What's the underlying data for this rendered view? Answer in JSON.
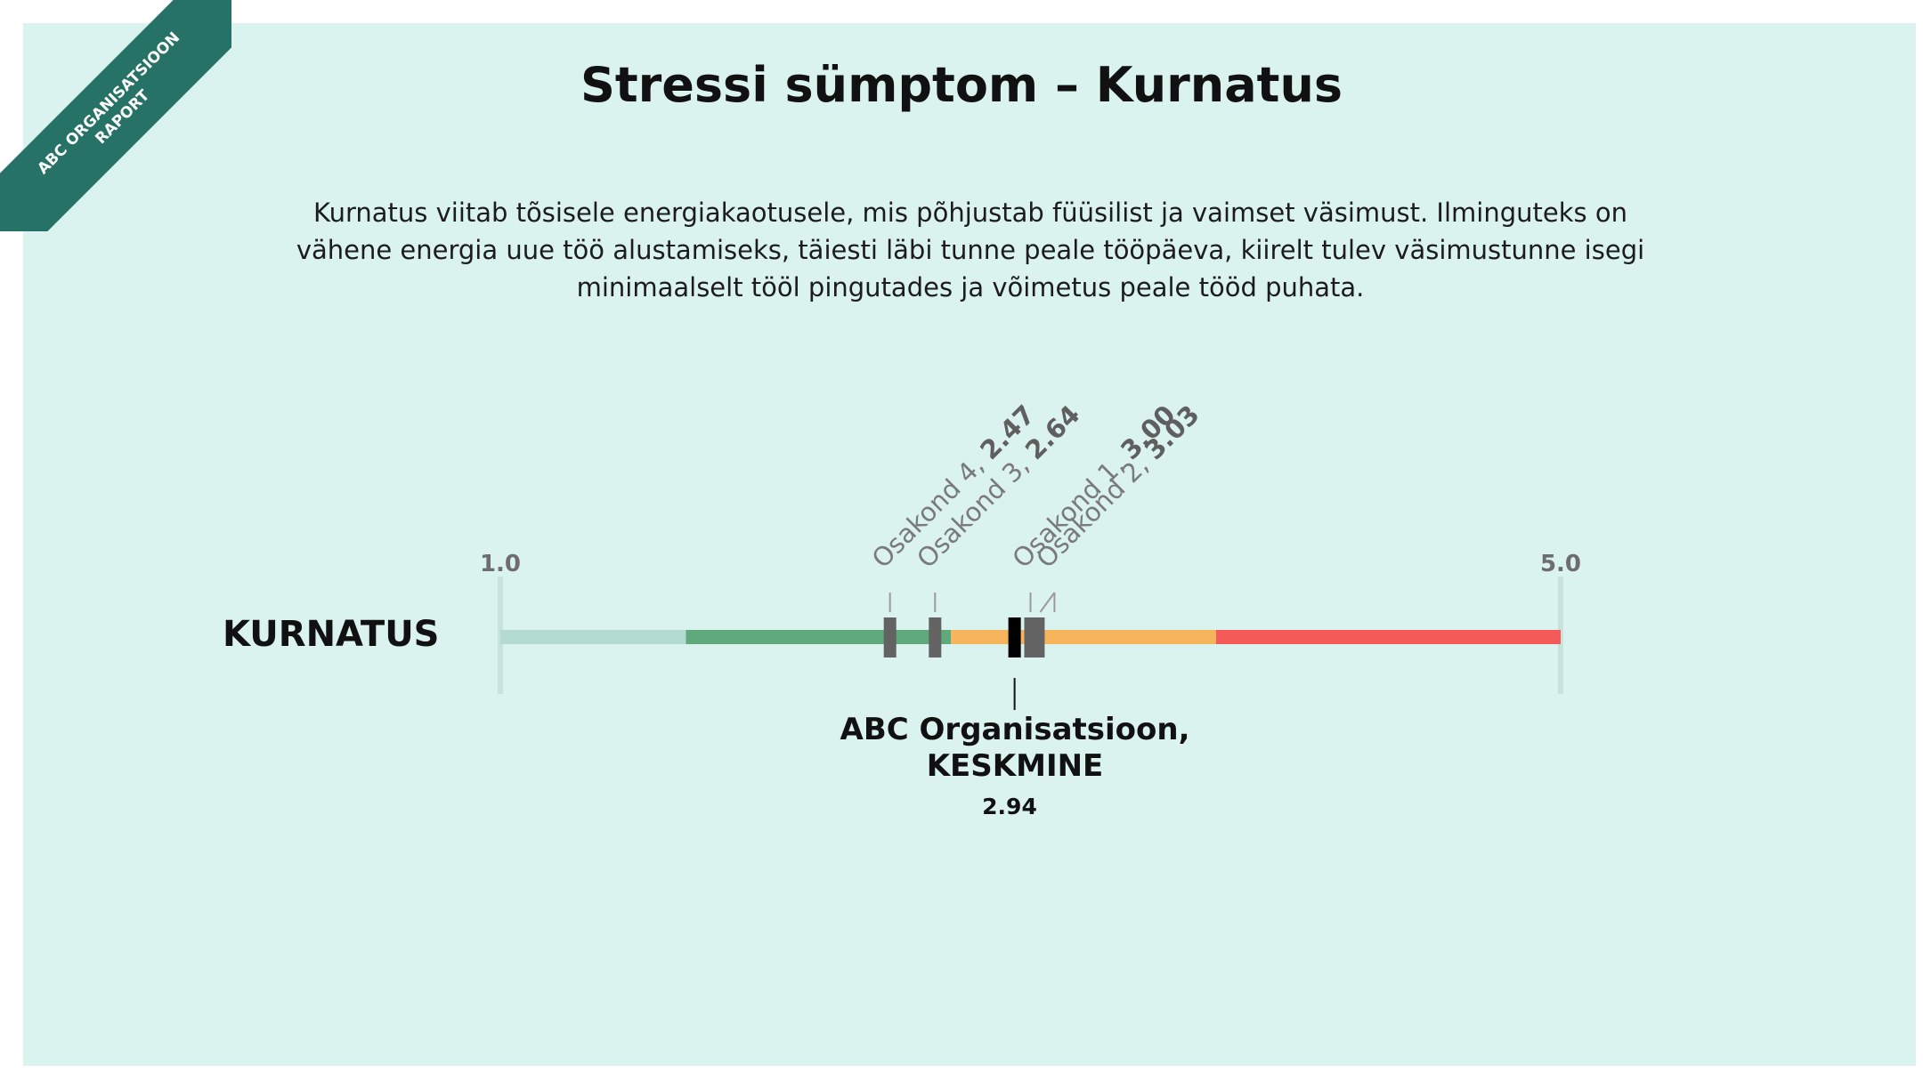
{
  "badge": {
    "line1": "ABC ORGANISATSIOON",
    "line2": "RAPORT"
  },
  "title": "Stressi sümptom – Kurnatus",
  "description": "Kurnatus viitab tõsisele energiakaotusele, mis põhjustab füüsilist ja vaimset väsimust. Ilminguteks on vähene energia uue töö alustamiseks, täiesti läbi tunne peale tööpäeva, kiirelt tulev väsimustunne isegi minimaalselt tööl pingutades ja võimetus peale tööd puhata.",
  "chart_data": {
    "type": "scale",
    "row_label": "KURNATUS",
    "xlim": [
      1.0,
      5.0
    ],
    "tick_labels": [
      "1.0",
      "5.0"
    ],
    "bands": [
      {
        "from": 1.0,
        "to": 1.7,
        "color": "#b4dbd2"
      },
      {
        "from": 1.7,
        "to": 2.7,
        "color": "#5fa97c"
      },
      {
        "from": 2.7,
        "to": 3.7,
        "color": "#f7b55b"
      },
      {
        "from": 3.7,
        "to": 5.0,
        "color": "#f35b58"
      }
    ],
    "markers": [
      {
        "name": "Osakond 4",
        "value": 2.47,
        "label_value": "2.47"
      },
      {
        "name": "Osakond 3",
        "value": 2.64,
        "label_value": "2.64"
      },
      {
        "name": "Osakond 1",
        "value": 3.0,
        "label_value": "3.00"
      },
      {
        "name": "Osakond 2",
        "value": 3.03,
        "label_value": "3.03"
      }
    ],
    "average": {
      "label_line1": "ABC Organisatsioon,",
      "label_line2": "KESKMINE",
      "value": 2.94,
      "label_value": "2.94"
    }
  },
  "colors": {
    "background": "#daf3ef",
    "badge": "#267267",
    "marker": "#636363",
    "average_marker": "#000000"
  }
}
